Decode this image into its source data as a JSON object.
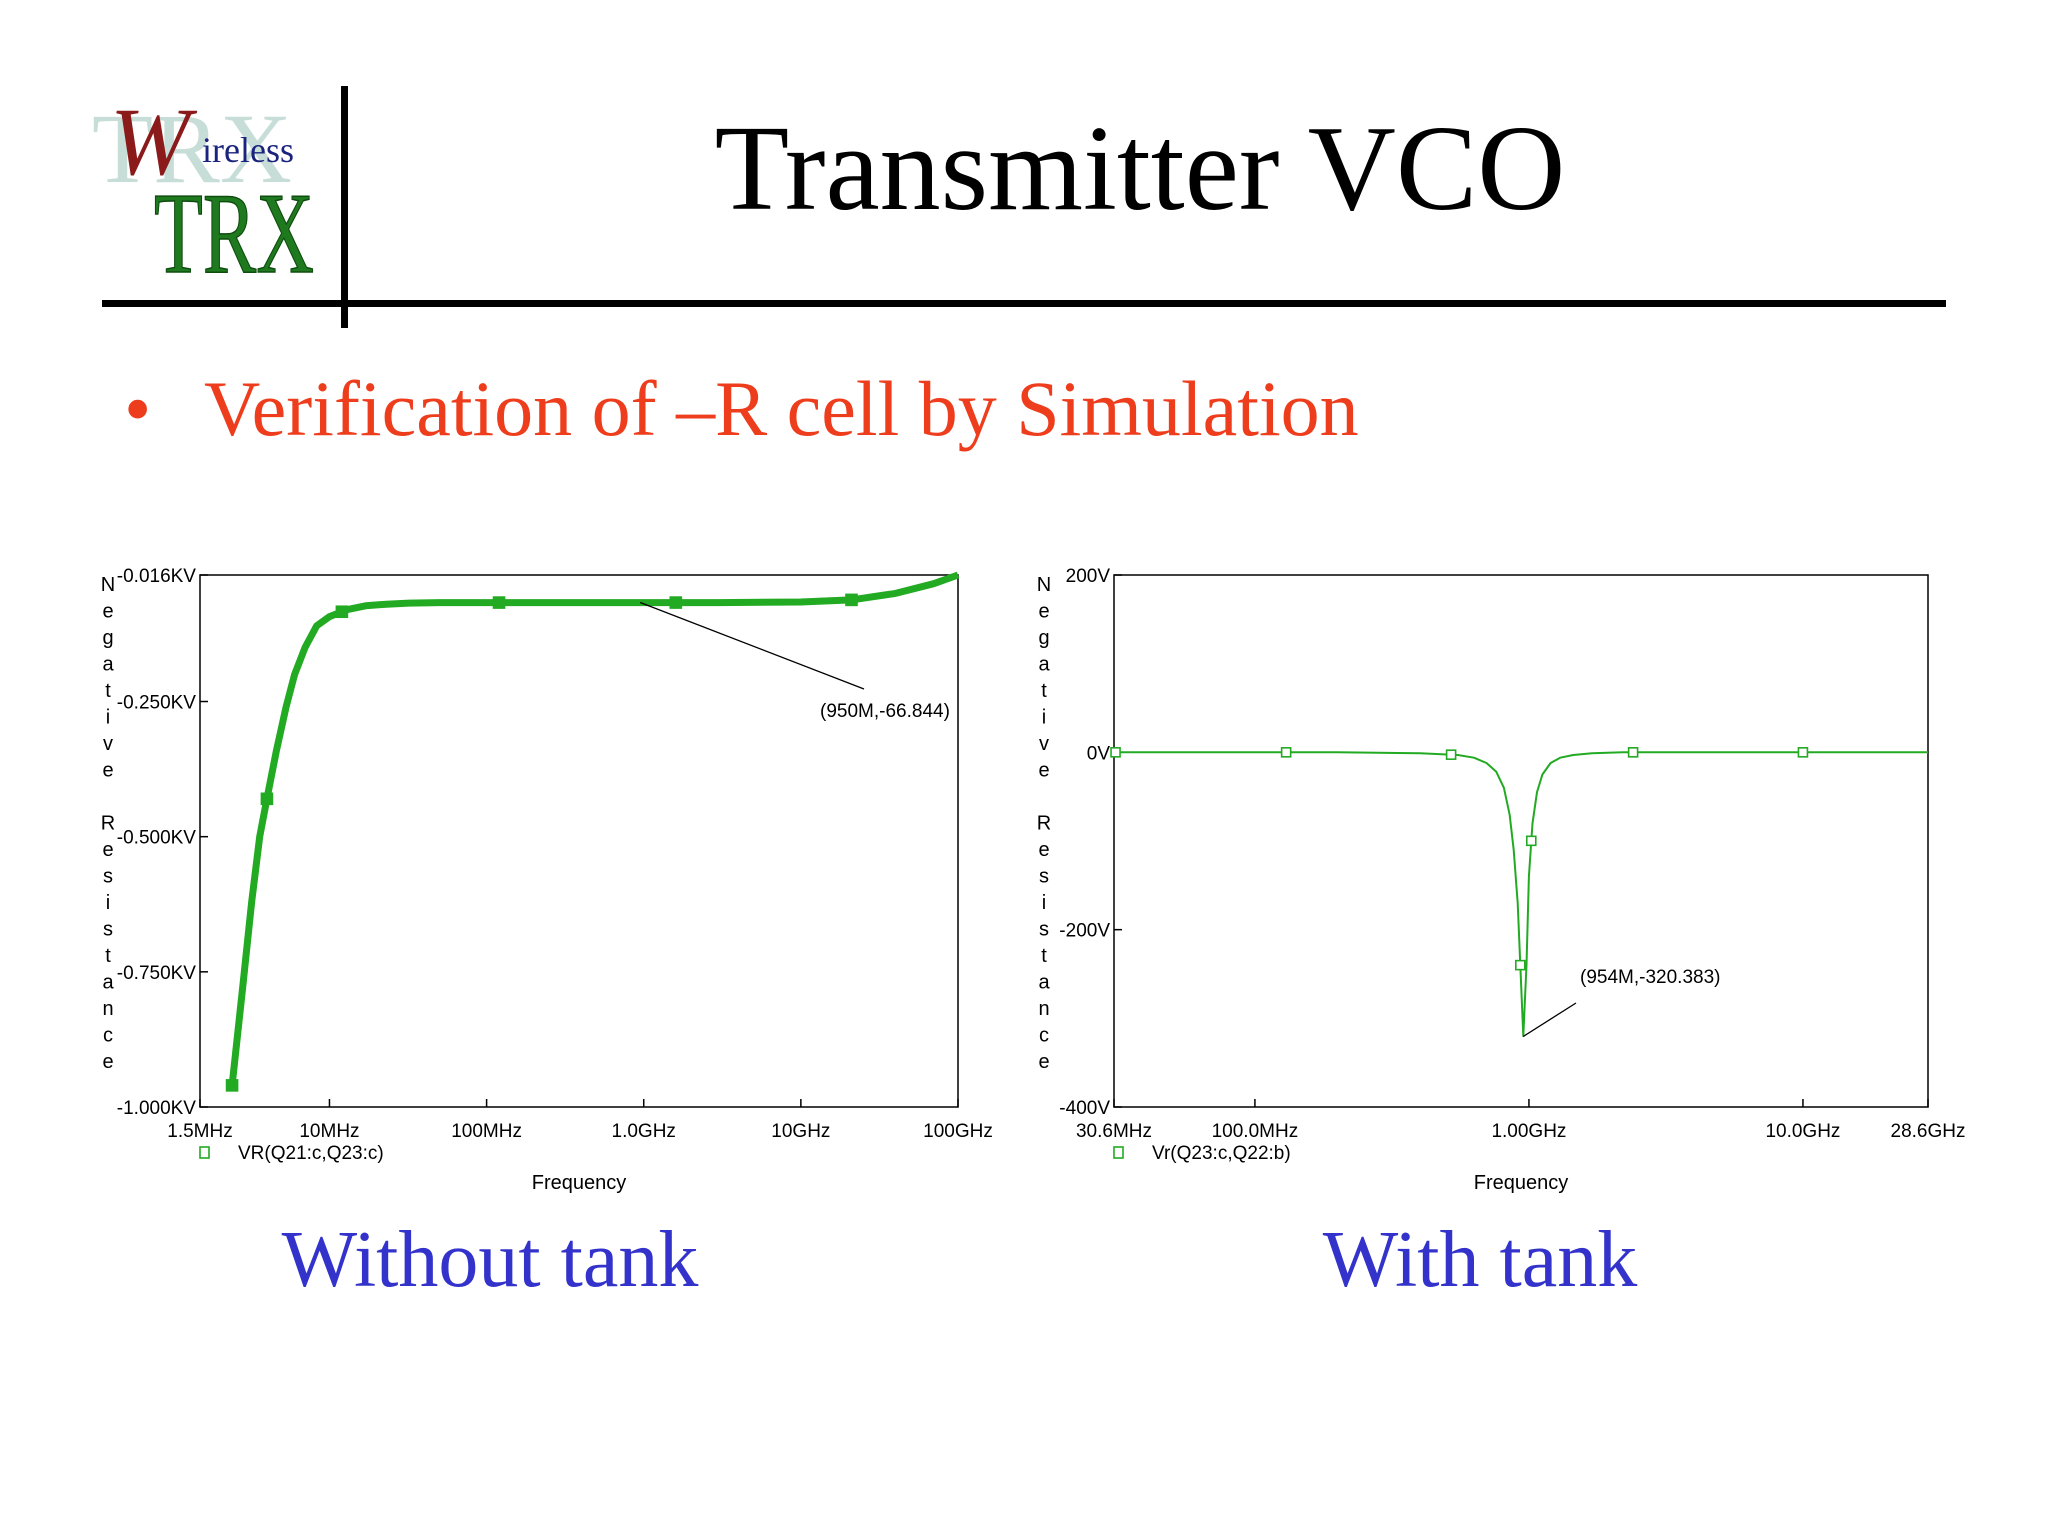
{
  "slide": {
    "title": "Transmitter VCO",
    "bullet_symbol": "•",
    "bullet_text": "Verification of –R cell by Simulation",
    "logo": {
      "big_letter": "W",
      "word": "ireless",
      "trx": "TRX"
    }
  },
  "colors": {
    "bullet": "#ee3d1c",
    "caption": "#3333cc",
    "trace": "#22aa22",
    "logo_red": "#8b1a1a",
    "logo_green": "#1f7a1f",
    "logo_navy": "#1a237e"
  },
  "chart_data": [
    {
      "type": "line",
      "caption": "Without tank",
      "xlabel": "Frequency",
      "ylabel": "Negative Resistance",
      "xscale": "log",
      "xlim": [
        1500000.0,
        100000000000.0
      ],
      "ylim": [
        -1000,
        -16
      ],
      "x_tick_labels": [
        "1.5MHz",
        "10MHz",
        "100MHz",
        "1.0GHz",
        "10GHz",
        "100GHz"
      ],
      "x_tick_values": [
        1500000.0,
        10000000.0,
        100000000.0,
        1000000000.0,
        10000000000.0,
        100000000000.0
      ],
      "y_tick_labels": [
        "-0.016KV",
        "-0.250KV",
        "-0.500KV",
        "-0.750KV",
        "-1.000KV"
      ],
      "y_tick_values": [
        -16,
        -250,
        -500,
        -750,
        -1000
      ],
      "series": [
        {
          "name": "VR(Q21:c,Q23:c)",
          "x": [
            2400000.0,
            2800000.0,
            3200000.0,
            3600000.0,
            4000000.0,
            4600000.0,
            5300000.0,
            6000000.0,
            7000000.0,
            8300000.0,
            10000000.0,
            13000000.0,
            17000000.0,
            23000000.0,
            32000000.0,
            50000000.0,
            100000000.0,
            120000000.0,
            200000000.0,
            500000000.0,
            1000000000.0,
            1600000000.0,
            3000000000.0,
            10000000000.0,
            21000000000.0,
            40000000000.0,
            70000000000.0,
            100000000000.0
          ],
          "values": [
            -960,
            -780,
            -620,
            -500,
            -430,
            -340,
            -260,
            -200,
            -150,
            -110,
            -93,
            -80,
            -73,
            -70,
            -68,
            -67,
            -67,
            -67,
            -67,
            -67,
            -67,
            -67,
            -67,
            -66,
            -62,
            -50,
            -32,
            -16
          ]
        }
      ],
      "markers_x": [
        2400000.0,
        4000000.0,
        12000000.0,
        120000000.0,
        1600000000.0,
        21000000000.0
      ],
      "annotation": {
        "text": "(950M,-66.844)",
        "x": 950000000.0,
        "y": -66.844
      }
    },
    {
      "type": "line",
      "caption": "With tank",
      "xlabel": "Frequency",
      "ylabel": "Negative Resistance",
      "xscale": "log",
      "xlim": [
        30600000.0,
        28600000000.0
      ],
      "ylim": [
        -400,
        200
      ],
      "x_tick_labels": [
        "30.6MHz",
        "100.0MHz",
        "1.00GHz",
        "10.0GHz",
        "28.6GHz"
      ],
      "x_tick_values": [
        30600000.0,
        100000000.0,
        1000000000.0,
        10000000000.0,
        28600000000.0
      ],
      "y_tick_labels": [
        "200V",
        "0V",
        "-200V",
        "-400V"
      ],
      "y_tick_values": [
        200,
        0,
        -200,
        -400
      ],
      "series": [
        {
          "name": "Vr(Q23:c,Q22:b)",
          "x": [
            30600000.0,
            100000000.0,
            200000000.0,
            400000000.0,
            550000000.0,
            630000000.0,
            700000000.0,
            760000000.0,
            810000000.0,
            850000000.0,
            880000000.0,
            910000000.0,
            930000000.0,
            954000000.0,
            980000000.0,
            1000000000.0,
            1030000000.0,
            1070000000.0,
            1120000000.0,
            1200000000.0,
            1300000000.0,
            1450000000.0,
            1700000000.0,
            2200000000.0,
            4000000000.0,
            10000000000.0,
            28600000000.0
          ],
          "values": [
            0,
            0,
            0,
            -1,
            -3,
            -6,
            -12,
            -22,
            -40,
            -70,
            -110,
            -170,
            -240,
            -320,
            -240,
            -140,
            -80,
            -45,
            -25,
            -12,
            -6,
            -3,
            -1,
            0,
            0,
            0,
            0
          ]
        }
      ],
      "markers_x": [
        31000000.0,
        130000000.0,
        520000000.0,
        930000000.0,
        1020000000.0,
        2400000000.0,
        10000000000.0
      ],
      "annotation": {
        "text": "(954M,-320.383)",
        "x": 954000000.0,
        "y": -320.383
      }
    }
  ]
}
